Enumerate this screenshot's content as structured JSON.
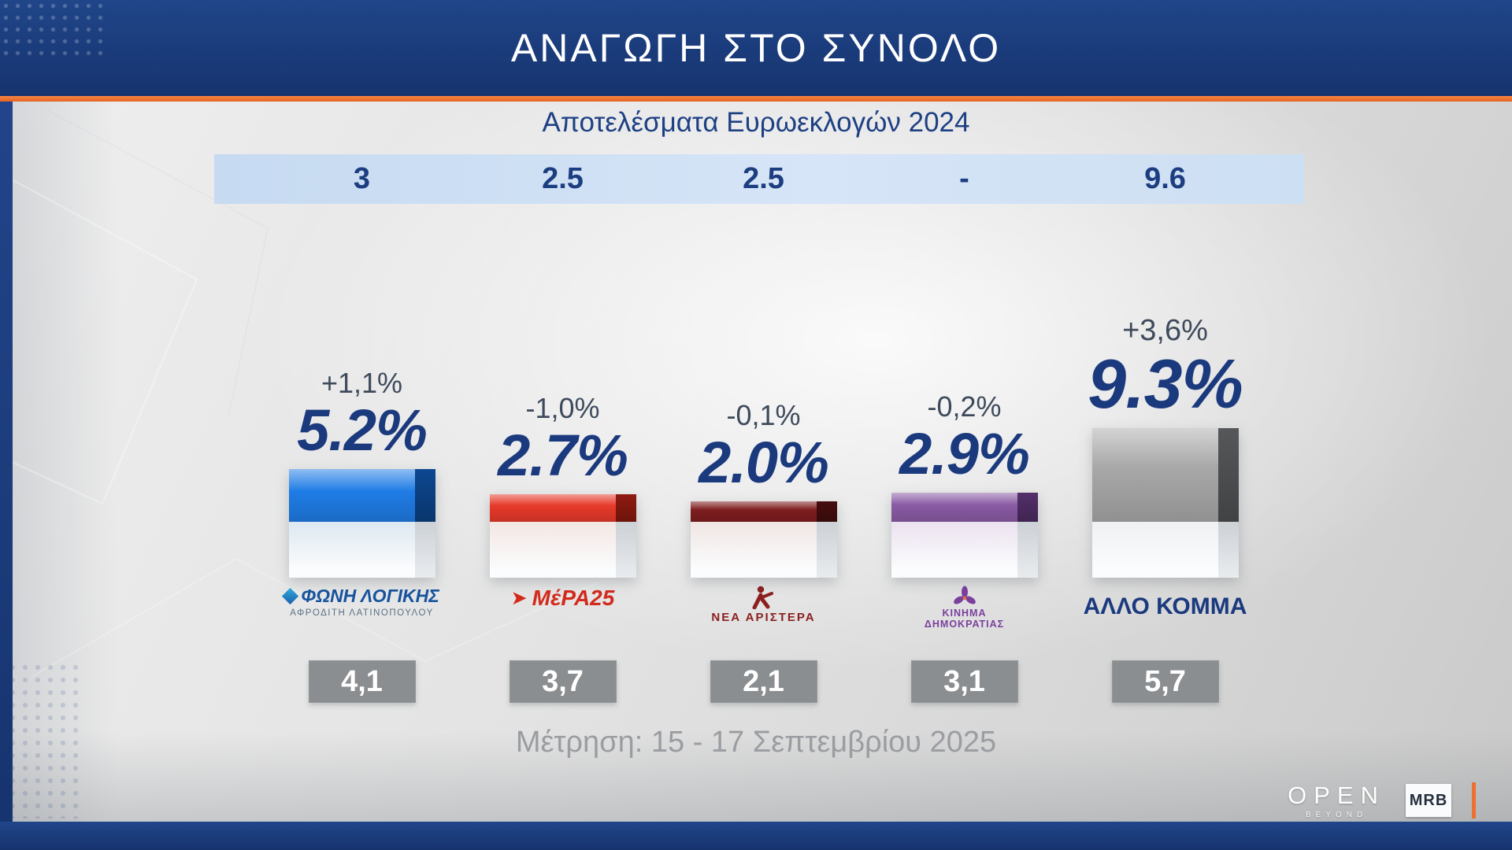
{
  "header": {
    "title": "ΑΝΑΓΩΓΗ ΣΤΟ ΣΥΝΟΛΟ"
  },
  "subtitle": "Αποτελέσματα Ευρωεκλογών 2024",
  "footer": {
    "measurement": "Μέτρηση: 15 - 17 Σεπτεμβρίου 2025"
  },
  "branding": {
    "open": "OPEN",
    "open_sub": "BEYOND",
    "mrb": "MRB",
    "accent_orange": "#ed7033",
    "navy": "#1c3e80"
  },
  "parties": [
    {
      "name": "ΦΩΝΗ ΛΟΓΙΚΗΣ",
      "euro2024": "3",
      "change": "+1,1%",
      "value": 5.2,
      "value_label": "5.2%",
      "box_value": "4,1",
      "color": "#1f7ce5",
      "side": "#0e4fa0",
      "pedestal": "#dde8f1",
      "logo_line1": "ΦΩΝΗ ΛΟΓΙΚΗΣ",
      "logo_line2": "ΑΦΡΟΔΙΤΗ ΛΑΤΙΝΟΠΟΥΛΟΥ"
    },
    {
      "name": "ΜέΡΑ25",
      "euro2024": "2.5",
      "change": "-1,0%",
      "value": 2.7,
      "value_label": "2.7%",
      "box_value": "3,7",
      "color": "#e6392a",
      "side": "#a01d12",
      "pedestal": "#f3e7e4",
      "logo_line1": "ΜέΡΑ25",
      "logo_line2": ""
    },
    {
      "name": "ΝΕΑ ΑΡΙΣΤΕΡΑ",
      "euro2024": "2.5",
      "change": "-0,1%",
      "value": 2.0,
      "value_label": "2.0%",
      "box_value": "2,1",
      "color": "#7e1d1f",
      "side": "#4f0f10",
      "pedestal": "#efe6e4",
      "logo_line1": "ΝΕΑ ΑΡΙΣΤΕΡΑ",
      "logo_line2": ""
    },
    {
      "name": "ΚΙΝΗΜΑ ΔΗΜΟΚΡΑΤΙΑΣ",
      "euro2024": "-",
      "change": "-0,2%",
      "value": 2.9,
      "value_label": "2.9%",
      "box_value": "3,1",
      "color": "#8a5ba4",
      "side": "#5d3576",
      "pedestal": "#ece2f0",
      "logo_line1": "ΚΙΝΗΜΑ ΔΗΜΟΚΡΑΤΙΑΣ",
      "logo_line2": ""
    },
    {
      "name": "ΑΛΛΟ ΚΟΜΜΑ",
      "euro2024": "9.6",
      "change": "+3,6%",
      "value": 9.3,
      "value_label": "9.3%",
      "box_value": "5,7",
      "color": "#a8a8a8",
      "side": "#5f6164",
      "pedestal": "#f0f1f2",
      "logo_line1": "ΑΛΛΟ ΚΟΜΜΑ",
      "logo_line2": ""
    }
  ],
  "logo3_line1": "ΚΙΝΗΜΑ",
  "logo3_line2": "ΔΗΜΟΚΡΑΤΙΑΣ",
  "chart_data": {
    "type": "bar",
    "title": "ΑΝΑΓΩΓΗ ΣΤΟ ΣΥΝΟΛΟ",
    "subtitle": "Αποτελέσματα Ευρωεκλογών 2024",
    "categories": [
      "ΦΩΝΗ ΛΟΓΙΚΗΣ",
      "ΜέΡΑ25",
      "ΝΕΑ ΑΡΙΣΤΕΡΑ",
      "ΚΙΝΗΜΑ ΔΗΜΟΚΡΑΤΙΑΣ",
      "ΑΛΛΟ ΚΟΜΜΑ"
    ],
    "values": [
      5.2,
      2.7,
      2.0,
      2.9,
      9.3
    ],
    "value_labels": [
      "5.2%",
      "2.7%",
      "2.0%",
      "2.9%",
      "9.3%"
    ],
    "change_labels": [
      "+1,1%",
      "-1,0%",
      "-0,1%",
      "-0,2%",
      "+3,6%"
    ],
    "euro2024_row": [
      "3",
      "2.5",
      "2.5",
      "-",
      "9.6"
    ],
    "box_values": [
      "4,1",
      "3,7",
      "2,1",
      "3,1",
      "5,7"
    ],
    "bar_colors": [
      "#1f7ce5",
      "#e6392a",
      "#7e1d1f",
      "#8a5ba4",
      "#a8a8a8"
    ],
    "footnote": "Μέτρηση: 15 - 17 Σεπτεμβρίου 2025",
    "legend": false,
    "grid": false,
    "ylim": [
      0,
      10
    ]
  }
}
